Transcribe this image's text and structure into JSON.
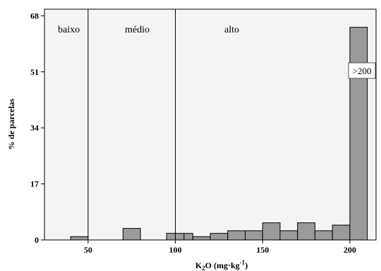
{
  "chart_data": {
    "type": "bar",
    "subtype": "histogram",
    "xlabel": "K",
    "xlabel_sub": "2",
    "xlabel_rest": "O (mg",
    "xlabel_dot": "·",
    "xlabel_unit": "kg",
    "xlabel_sup": "-1",
    "xlabel_close": ")",
    "ylabel": "% de parcelas",
    "xlim": [
      25,
      215
    ],
    "ylim": [
      0,
      70
    ],
    "xticks": [
      50,
      100,
      150,
      200
    ],
    "yticks": [
      0,
      17,
      34,
      51,
      68
    ],
    "bin_width": 10,
    "bins": [
      {
        "x0": 40,
        "x1": 50,
        "value": 1
      },
      {
        "x0": 70,
        "x1": 80,
        "value": 3.5
      },
      {
        "x0": 95,
        "x1": 100,
        "value": 2
      },
      {
        "x0": 100,
        "x1": 105,
        "value": 2
      },
      {
        "x0": 105,
        "x1": 110,
        "value": 2
      },
      {
        "x0": 110,
        "x1": 120,
        "value": 1
      },
      {
        "x0": 120,
        "x1": 130,
        "value": 2
      },
      {
        "x0": 130,
        "x1": 140,
        "value": 2.8
      },
      {
        "x0": 140,
        "x1": 150,
        "value": 2.8
      },
      {
        "x0": 150,
        "x1": 160,
        "value": 5.2
      },
      {
        "x0": 160,
        "x1": 170,
        "value": 2.8
      },
      {
        "x0": 170,
        "x1": 180,
        "value": 5.2
      },
      {
        "x0": 180,
        "x1": 190,
        "value": 2.8
      },
      {
        "x0": 190,
        "x1": 200,
        "value": 4.5
      },
      {
        "x0": 200,
        "x1": 210,
        "value": 64.5
      }
    ],
    "regions": [
      {
        "label": "baixo"
      },
      {
        "label": "médio"
      },
      {
        "label": "alto"
      }
    ],
    "region_boundaries": [
      50,
      100
    ],
    "annotation": {
      "text": ">200"
    },
    "colors": {
      "bar_fill": "#9a9a9a",
      "bar_stroke": "#000000",
      "plot_bg": "#f4f4f4",
      "line": "#000000"
    }
  }
}
